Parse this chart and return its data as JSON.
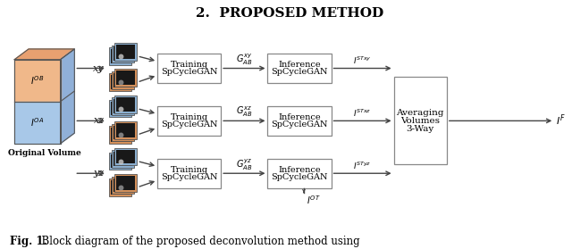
{
  "title": "2.  PROPOSED METHOD",
  "title_fontsize": 11,
  "caption_bold": "Fig. 1.",
  "caption_rest": "  Block diagram of the proposed deconvolution method using",
  "caption_fontsize": 8.5,
  "bg_color": "#ffffff",
  "box_edge": "#888888",
  "arrow_color": "#444444",
  "cube_orange": "#F0B88A",
  "cube_orange_top": "#E8A070",
  "cube_blue": "#A8C8E8",
  "cube_blue_side": "#90B0D8",
  "cube_outline": "#555555",
  "img_blue_frame": "#8BAFD0",
  "img_orange_frame": "#D4905A",
  "img_dark": "#181818",
  "rows": [
    "xy",
    "xz",
    "yz"
  ],
  "training_line1": "SpCycleGAN",
  "training_line2": "Training",
  "inference_line1": "SpCycleGAN",
  "inference_line2": "Inference",
  "avg_line1": "3-Way",
  "avg_line2": "Volumes",
  "avg_line3": "Averaging",
  "g_labels": [
    "$G^{xy}_{AB}$",
    "$G^{xz}_{AB}$",
    "$G^{yz}_{AB}$"
  ],
  "ist_labels": [
    "$I^{STxy}$",
    "$I^{STxz}$",
    "$I^{STyz}$"
  ],
  "orig_vol_label": "Original Volume"
}
